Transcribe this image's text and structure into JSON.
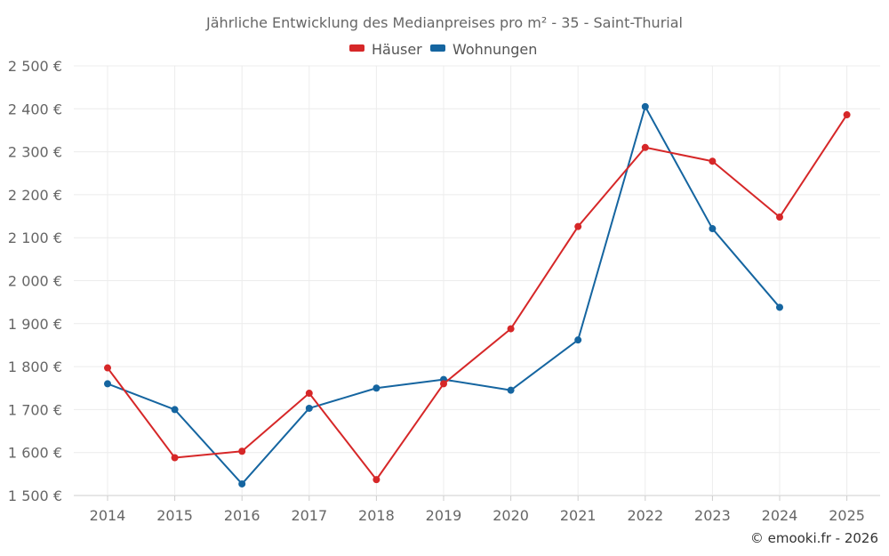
{
  "chart_data": {
    "type": "line",
    "title": "Jährliche Entwicklung des Medianpreises pro m² - 35 - Saint-Thurial",
    "categories": [
      "2014",
      "2015",
      "2016",
      "2017",
      "2018",
      "2019",
      "2020",
      "2021",
      "2022",
      "2023",
      "2024",
      "2025"
    ],
    "ylim": [
      1500,
      2500
    ],
    "yticks": [
      1500,
      1600,
      1700,
      1800,
      1900,
      2000,
      2100,
      2200,
      2300,
      2400,
      2500
    ],
    "ytick_labels": [
      "1 500 €",
      "1 600 €",
      "1 700 €",
      "1 800 €",
      "1 900 €",
      "2 000 €",
      "2 100 €",
      "2 200 €",
      "2 300 €",
      "2 400 €",
      "2 500 €"
    ],
    "grid": true,
    "legend_position": "top-center",
    "series": [
      {
        "name": "Häuser",
        "color": "#d62728",
        "values": [
          1797,
          1588,
          1603,
          1738,
          1537,
          1760,
          1888,
          2126,
          2310,
          2278,
          2148,
          2386
        ]
      },
      {
        "name": "Wohnungen",
        "color": "#1565a0",
        "values": [
          1760,
          1700,
          1527,
          1703,
          1750,
          1770,
          1745,
          1862,
          2405,
          2121,
          1938,
          null
        ]
      }
    ]
  },
  "credit": "© emooki.fr - 2026"
}
